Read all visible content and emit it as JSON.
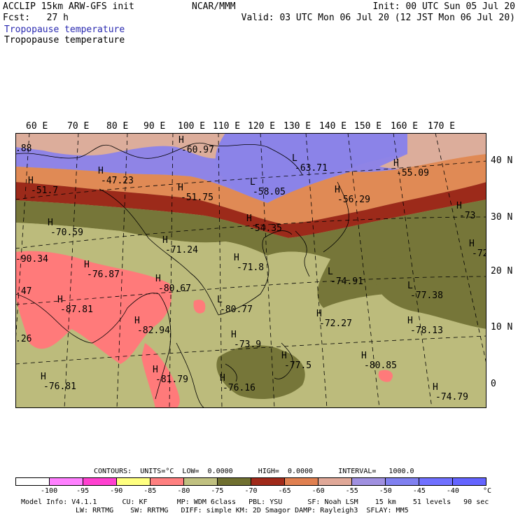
{
  "header": {
    "model_line": "ACCLIP 15km ARW-GFS init",
    "forecast_line": "Fcst:   27 h",
    "center": "NCAR/MMM",
    "init": "Init: 00 UTC Sun 05 Jul 20",
    "valid": "Valid: 03 UTC Mon 06 Jul 20 (12 JST Mon 06 Jul 20)",
    "field_1": "Tropopause temperature",
    "field_2": "Tropopause temperature"
  },
  "map": {
    "lon_labels": [
      "60 E",
      "70 E",
      "80 E",
      "90 E",
      "100 E",
      "110 E",
      "120 E",
      "130 E",
      "140 E",
      "150 E",
      "160 E",
      "170 E"
    ],
    "lat_labels": [
      "40 N",
      "30 N",
      "20 N",
      "10 N",
      "0"
    ],
    "extrema": [
      {
        "type": "H",
        "value": "-47.23"
      },
      {
        "type": "H",
        "value": "-51.75"
      },
      {
        "type": "L",
        "value": "-58.05"
      },
      {
        "type": "L",
        "value": "-63.71"
      },
      {
        "type": "H",
        "value": "-55.09"
      },
      {
        "type": "H",
        "value": "-56.29"
      },
      {
        "type": "H",
        "value": "-51.7"
      },
      {
        "type": "H",
        "value": "-70.59"
      },
      {
        "type": "H",
        "value": "-71.24"
      },
      {
        "type": "H",
        "value": "-54.35"
      },
      {
        "type": "H",
        "value": "-71.8"
      },
      {
        "type": "H",
        "value": "-76.87"
      },
      {
        "type": "H",
        "value": "-80.67"
      },
      {
        "type": "L",
        "value": "-80.77"
      },
      {
        "type": "H",
        "value": "-87.81"
      },
      {
        "type": "H",
        "value": "-82.94"
      },
      {
        "type": "L",
        "value": "-74.91"
      },
      {
        "type": "L",
        "value": "-77.38"
      },
      {
        "type": "H",
        "value": "-72.27"
      },
      {
        "type": "H",
        "value": "-78.13"
      },
      {
        "type": "H",
        "value": "-73.9"
      },
      {
        "type": "H",
        "value": "-77.5"
      },
      {
        "type": "H",
        "value": "-80.85"
      },
      {
        "type": "H",
        "value": "-76.81"
      },
      {
        "type": "H",
        "value": "-81.79"
      },
      {
        "type": "H",
        "value": "-76.16"
      },
      {
        "type": "H",
        "value": "-74.79"
      },
      {
        "type": "H",
        "value": "-73"
      },
      {
        "type": "H",
        "value": "-72"
      },
      {
        "type": "H",
        "value": "-60.97"
      },
      {
        "type": "",
        "value": "-90.34"
      },
      {
        "type": "",
        "value": ".88"
      },
      {
        "type": "",
        "value": ".47"
      },
      {
        "type": "",
        "value": ".26"
      }
    ],
    "fill_colors": {
      "le_-90": "#ff6eff",
      "-90_-85": "#ffff6e",
      "-85_-80": "#ff7a7a",
      "-80_-75": "#c0c080",
      "-75_-70": "#76763a",
      "-70_-65": "#a02a1a",
      "-65_-60": "#e08a55",
      "-60_-55": "#ddaa98",
      "-55_-50": "#9c8ed8",
      "-50_-45": "#7a7ae8",
      "-45_-40": "#8080ee"
    }
  },
  "legend": {
    "contours": "CONTOURS:  UNITS=°C  LOW=  0.0000      HIGH=  0.0000      INTERVAL=   1000.0",
    "ticks": [
      "-100",
      "-95",
      "-90",
      "-85",
      "-80",
      "-75",
      "-70",
      "-65",
      "-60",
      "-55",
      "-50",
      "-45",
      "-40"
    ],
    "unit": "°C",
    "colors": [
      "#ffffff",
      "#ff80ff",
      "#ff40d0",
      "#ffff80",
      "#ff8080",
      "#c0c080",
      "#707030",
      "#a02a1a",
      "#e08050",
      "#e0a898",
      "#a090e0",
      "#8080f0",
      "#7070ff",
      "#6464ff"
    ]
  },
  "footer": {
    "line1": "Model Info: V4.1.1      CU: KF       MP: WDM 6class   PBL: YSU      SF: Noah LSM    15 km    51 levels   90 sec",
    "line2": "LW: RRTMG    SW: RRTMG   DIFF: simple KM: 2D Smagor DAMP: Rayleigh3  SFLAY: MM5"
  }
}
